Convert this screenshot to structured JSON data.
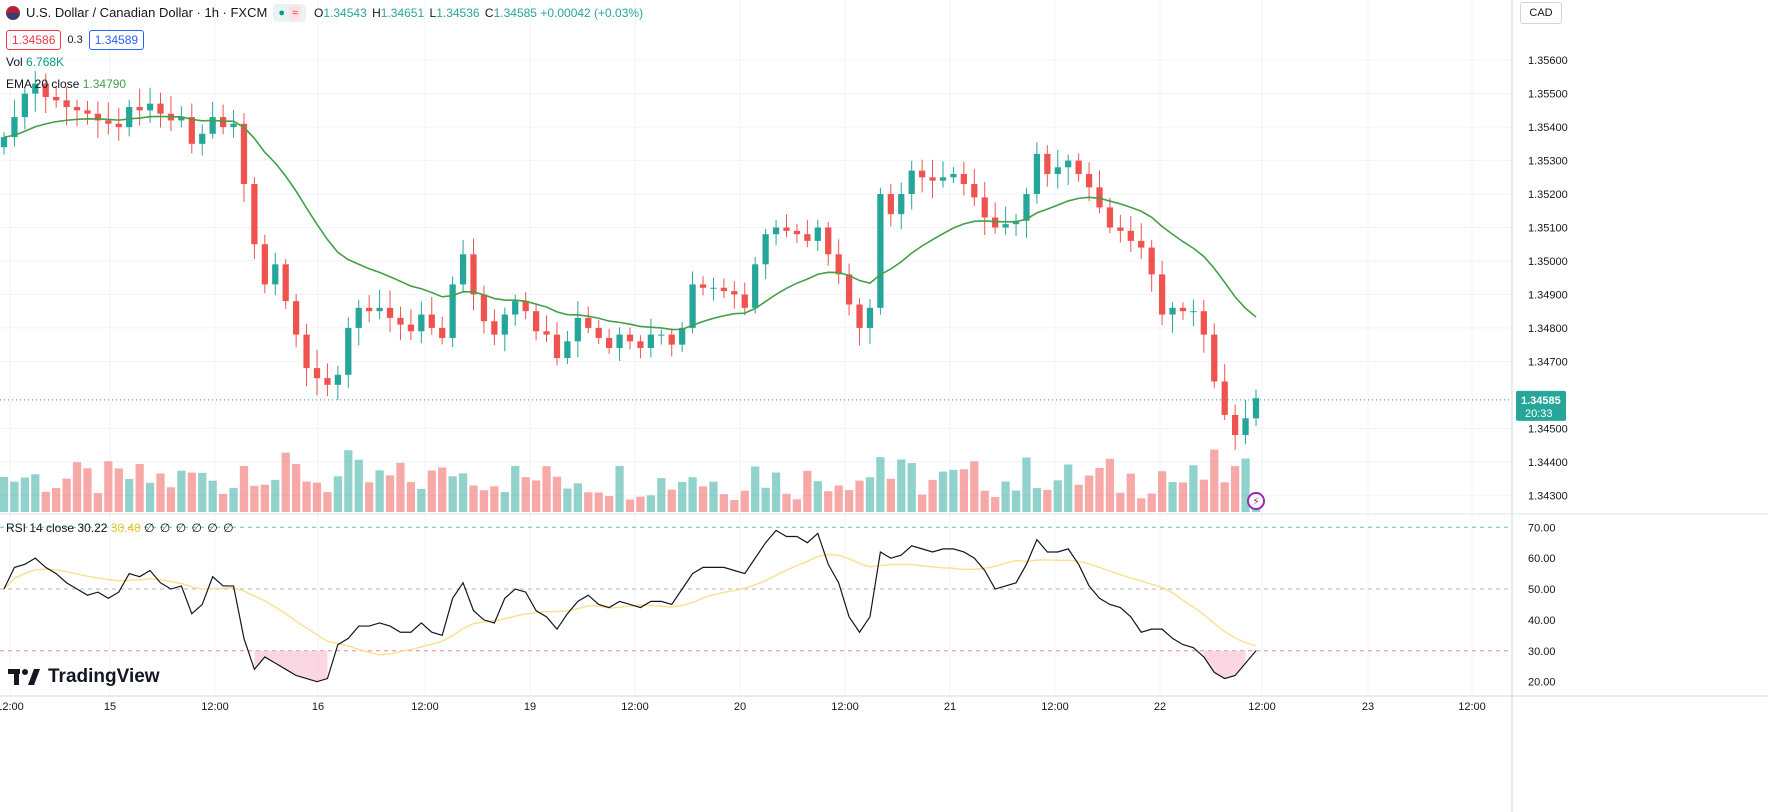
{
  "header": {
    "symbol_title": "U.S. Dollar / Canadian Dollar · 1h · FXCM",
    "indicator_pill_a": "●",
    "indicator_pill_b": "≈",
    "ohlc": {
      "open_label": "O",
      "open": "1.34543",
      "high_label": "H",
      "high": "1.34651",
      "low_label": "L",
      "low": "1.34536",
      "close_label": "C",
      "close": "1.34585",
      "change": "+0.00042 (+0.03%)"
    },
    "sell_price": "1.34586",
    "spread": "0.3",
    "buy_price": "1.34589",
    "volume_label": "Vol",
    "volume_value": "6.768K",
    "ema_label": "EMA 20 close",
    "ema_value": "1.34790",
    "currency_button": "CAD"
  },
  "rsi_legend": {
    "label": "RSI 14 close",
    "rsi_value": "30.22",
    "ma_value": "30.40",
    "zeros": "∅ ∅ ∅ ∅ ∅ ∅"
  },
  "logo_text": "TradingView",
  "colors": {
    "up": "#26a69a",
    "down": "#ef5350",
    "ema": "#43a047",
    "rsi": "#131722",
    "rsi_ma": "#f8e08e",
    "last_price_bg": "#26a69a"
  },
  "last_price": {
    "price": "1.34585",
    "countdown": "20:33"
  },
  "chart_data": [
    {
      "type": "candlestick",
      "title": "U.S. Dollar / Canadian Dollar · 1h · FXCM",
      "price_axis_ticks": [
        "1.35600",
        "1.35500",
        "1.35400",
        "1.35300",
        "1.35200",
        "1.35100",
        "1.35000",
        "1.34900",
        "1.34800",
        "1.34700",
        "1.34500",
        "1.34400",
        "1.34300"
      ],
      "ylim": [
        1.3425,
        1.3572
      ],
      "x_ticks": [
        "12:00",
        "15",
        "12:00",
        "16",
        "12:00",
        "19",
        "12:00",
        "20",
        "12:00",
        "21",
        "12:00",
        "22",
        "12:00",
        "23",
        "12:00"
      ],
      "ohlc_close": [
        1.3537,
        1.3543,
        1.355,
        1.3553,
        1.3549,
        1.3548,
        1.3546,
        1.3545,
        1.3544,
        1.3542,
        1.3541,
        1.354,
        1.3546,
        1.3545,
        1.3547,
        1.3544,
        1.3542,
        1.3543,
        1.3535,
        1.3538,
        1.3543,
        1.354,
        1.3541,
        1.3523,
        1.3505,
        1.3493,
        1.3499,
        1.3488,
        1.3478,
        1.3468,
        1.3465,
        1.3463,
        1.3466,
        1.348,
        1.3486,
        1.3485,
        1.3486,
        1.3483,
        1.3481,
        1.3479,
        1.3484,
        1.348,
        1.3477,
        1.3493,
        1.3502,
        1.349,
        1.3482,
        1.3478,
        1.3484,
        1.3488,
        1.3485,
        1.3479,
        1.3478,
        1.3471,
        1.3476,
        1.3483,
        1.348,
        1.3477,
        1.3474,
        1.3478,
        1.3476,
        1.3474,
        1.3478,
        1.3478,
        1.3475,
        1.348,
        1.3493,
        1.3492,
        1.3492,
        1.3491,
        1.349,
        1.3486,
        1.3499,
        1.3508,
        1.351,
        1.3509,
        1.3508,
        1.3506,
        1.351,
        1.3502,
        1.3496,
        1.3487,
        1.348,
        1.3486,
        1.352,
        1.3514,
        1.352,
        1.3527,
        1.3525,
        1.3524,
        1.3525,
        1.3526,
        1.3523,
        1.3519,
        1.3513,
        1.351,
        1.3511,
        1.3512,
        1.352,
        1.3532,
        1.3526,
        1.3528,
        1.353,
        1.3526,
        1.3522,
        1.3516,
        1.351,
        1.3509,
        1.3506,
        1.3504,
        1.3496,
        1.3484,
        1.3486,
        1.3485,
        1.3485,
        1.3478,
        1.3464,
        1.3454,
        1.3448,
        1.3453,
        1.3459
      ],
      "volume_note": "volume histogram colored by candle direction",
      "ema_period": 20
    },
    {
      "type": "line",
      "title": "RSI 14 close",
      "y_ticks": [
        "70.00",
        "60.00",
        "50.00",
        "40.00",
        "30.00",
        "20.00"
      ],
      "ylim": [
        16,
        73
      ],
      "levels": [
        70,
        50,
        30
      ],
      "series": [
        {
          "name": "RSI",
          "values": [
            50,
            57,
            58,
            60,
            57,
            55,
            52,
            50,
            48,
            49,
            47,
            49,
            55,
            54,
            56,
            52,
            50,
            51,
            42,
            45,
            54,
            51,
            51,
            34,
            24,
            28,
            26,
            24,
            22,
            21,
            20,
            21,
            32,
            34,
            38,
            38,
            39,
            38,
            36,
            36,
            39,
            36,
            35,
            47,
            52,
            43,
            40,
            39,
            47,
            50,
            49,
            43,
            41,
            37,
            42,
            46,
            48,
            45,
            44,
            46,
            45,
            44,
            46,
            46,
            45,
            50,
            55,
            57,
            57,
            57,
            56,
            55,
            60,
            65,
            69,
            67,
            67,
            65,
            68,
            58,
            52,
            41,
            36,
            41,
            62,
            60,
            61,
            64,
            63,
            62,
            63,
            63,
            62,
            60,
            56,
            50,
            51,
            52,
            58,
            66,
            62,
            62,
            63,
            58,
            51,
            47,
            45,
            44,
            41,
            36,
            37,
            37,
            34,
            32,
            31,
            28,
            23,
            21,
            22,
            26,
            30
          ]
        }
      ]
    }
  ]
}
